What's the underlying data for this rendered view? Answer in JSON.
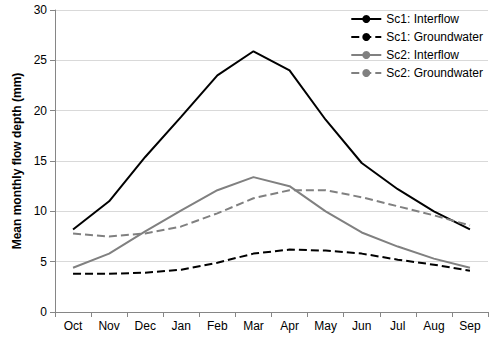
{
  "chart_data": {
    "type": "line",
    "y_label": "Mean monthly flow depth (mm)",
    "categories": [
      "Oct",
      "Nov",
      "Dec",
      "Jan",
      "Feb",
      "Mar",
      "Apr",
      "May",
      "Jun",
      "Jul",
      "Aug",
      "Sep"
    ],
    "series": [
      {
        "name": "Sc1: Interflow",
        "color": "#000000",
        "line_style": "solid",
        "values": [
          8.2,
          11.0,
          15.4,
          19.4,
          23.5,
          25.9,
          24.0,
          19.1,
          14.8,
          12.2,
          10.0,
          8.2
        ]
      },
      {
        "name": "Sc1: Groundwater",
        "color": "#000000",
        "line_style": "dashed",
        "values": [
          3.8,
          3.8,
          3.9,
          4.2,
          4.9,
          5.8,
          6.2,
          6.1,
          5.8,
          5.2,
          4.7,
          4.1
        ]
      },
      {
        "name": "Sc2: Interflow",
        "color": "#808080",
        "line_style": "solid",
        "values": [
          4.4,
          5.8,
          8.0,
          10.1,
          12.1,
          13.4,
          12.5,
          10.0,
          7.9,
          6.5,
          5.3,
          4.4
        ]
      },
      {
        "name": "Sc2: Groundwater",
        "color": "#808080",
        "line_style": "dashed",
        "values": [
          7.8,
          7.5,
          7.8,
          8.5,
          9.8,
          11.3,
          12.1,
          12.1,
          11.4,
          10.5,
          9.6,
          8.6
        ]
      }
    ],
    "ylim": [
      0,
      30
    ],
    "yticks": [
      0,
      5,
      10,
      15,
      20,
      25,
      30
    ],
    "grid": true,
    "legend": "upper right",
    "marker": "none"
  }
}
